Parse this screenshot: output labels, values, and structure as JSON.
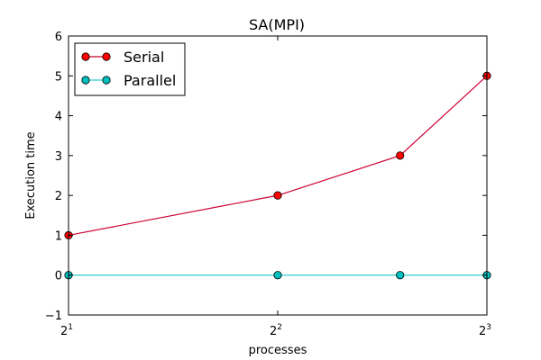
{
  "chart_data": {
    "type": "line",
    "title": "SA(MPI)",
    "xlabel": "processes",
    "ylabel": "Execution time",
    "x_scale": "log2",
    "x": [
      2,
      4,
      6,
      8
    ],
    "xlim": [
      2,
      8
    ],
    "ylim": [
      -1,
      6
    ],
    "xticks": [
      {
        "value": 2,
        "base": "2",
        "exp": "1"
      },
      {
        "value": 4,
        "base": "2",
        "exp": "2"
      },
      {
        "value": 8,
        "base": "2",
        "exp": "3"
      }
    ],
    "yticks": [
      -1,
      0,
      1,
      2,
      3,
      4,
      5,
      6
    ],
    "ytick_labels": [
      "−1",
      "0",
      "1",
      "2",
      "3",
      "4",
      "5",
      "6"
    ],
    "grid": false,
    "legend_position": "top-left",
    "series": [
      {
        "name": "Serial",
        "values": [
          1,
          2,
          3,
          5
        ],
        "color": "#cc0033",
        "marker_color": "#ff0000"
      },
      {
        "name": "Parallel",
        "values": [
          0,
          0,
          0,
          0
        ],
        "color": "#33cccc",
        "marker_color": "#00bfbf"
      }
    ]
  }
}
